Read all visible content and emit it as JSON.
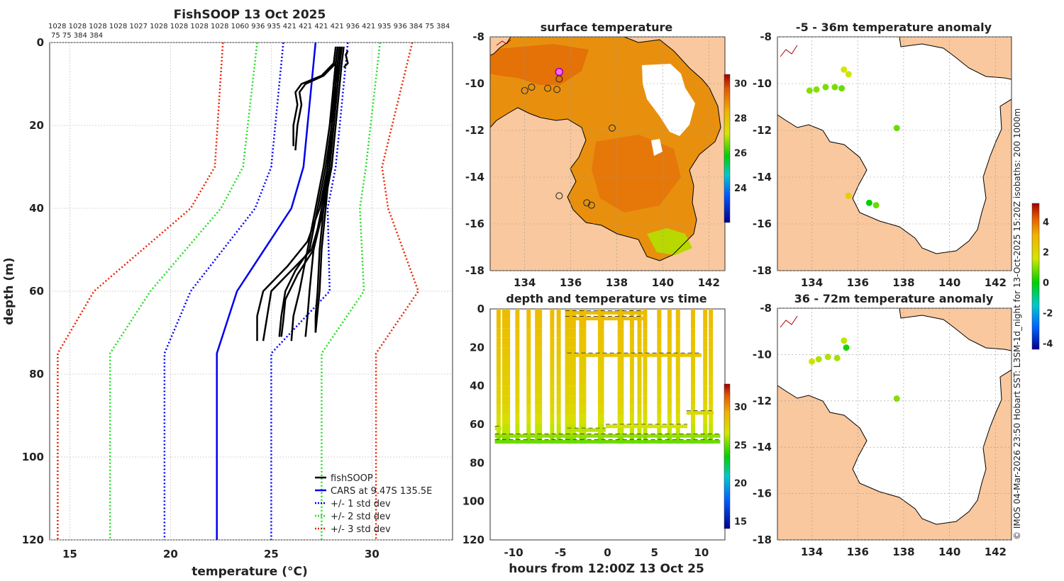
{
  "colors": {
    "fishsoop": "#000000",
    "cars": "#0000ee",
    "std1": "#0000ff",
    "std2": "#22dd22",
    "std3": "#ee2200",
    "land": "#f9c89e",
    "sea_no_data": "#ffffff"
  },
  "chart_data": [
    {
      "id": "profile",
      "type": "line",
      "title": "FishSOOP 13 Oct 2025",
      "subtitle_ids": "1028 1028 1028 1028 1027 1028 1028 1028 1028 1060 936 935 421 421 421 421 936 421 935 936 384 75 384",
      "subtitle_ids_2": "75 75 384 384",
      "xlabel": "temperature (°C)",
      "ylabel": "depth (m)",
      "xlim": [
        14,
        34
      ],
      "ylim": [
        120,
        0
      ],
      "xticks": [
        15,
        20,
        25,
        30
      ],
      "yticks": [
        0,
        20,
        40,
        60,
        80,
        100,
        120
      ],
      "legend": {
        "position": "bottom-right",
        "items": [
          {
            "label": "fishSOOP",
            "color": "#000000",
            "style": "solid"
          },
          {
            "label": "CARS at 9.47S 135.5E",
            "color": "#0000ee",
            "style": "solid"
          },
          {
            "label": "+/- 1 std dev",
            "color": "#0000ff",
            "style": "dotted"
          },
          {
            "label": "+/- 2 std dev",
            "color": "#22dd22",
            "style": "dotted"
          },
          {
            "label": "+/- 3 std dev",
            "color": "#ee2200",
            "style": "dotted"
          }
        ]
      },
      "cars_mean": {
        "depth": [
          0,
          30,
          40,
          60,
          75,
          120
        ],
        "temp": [
          27.2,
          26.6,
          26.0,
          23.3,
          22.3,
          22.3
        ]
      },
      "std_lines": [
        {
          "name": "-1 std",
          "color": "#0000ff",
          "depth": [
            0,
            30,
            40,
            60,
            75,
            120
          ],
          "temp": [
            25.6,
            25.0,
            24.2,
            21.0,
            19.7,
            19.7
          ]
        },
        {
          "name": "+1 std",
          "color": "#0000ff",
          "depth": [
            0,
            30,
            40,
            60,
            75,
            120
          ],
          "temp": [
            28.8,
            28.2,
            27.8,
            27.9,
            25.0,
            25.0
          ]
        },
        {
          "name": "-2 std",
          "color": "#22dd22",
          "depth": [
            0,
            30,
            40,
            60,
            75,
            120
          ],
          "temp": [
            24.3,
            23.6,
            22.5,
            19.0,
            17.0,
            17.0
          ]
        },
        {
          "name": "+2 std",
          "color": "#22dd22",
          "depth": [
            0,
            30,
            40,
            60,
            75,
            120
          ],
          "temp": [
            30.4,
            29.7,
            29.4,
            29.6,
            27.5,
            27.5
          ]
        },
        {
          "name": "-3 std",
          "color": "#ee2200",
          "depth": [
            0,
            30,
            40,
            60,
            75,
            120
          ],
          "temp": [
            22.6,
            22.2,
            21.0,
            16.2,
            14.4,
            14.4
          ]
        },
        {
          "name": "+3 std",
          "color": "#ee2200",
          "depth": [
            0,
            30,
            40,
            60,
            75,
            120
          ],
          "temp": [
            32.0,
            30.5,
            30.8,
            32.3,
            30.2,
            30.2
          ]
        }
      ],
      "fishsoop_profiles": [
        {
          "depth": [
            1,
            5,
            10,
            20,
            30,
            40,
            50,
            60,
            66,
            70
          ],
          "temp": [
            28.4,
            28.3,
            28.1,
            28.0,
            27.8,
            27.6,
            27.4,
            27.3,
            27.2,
            27.2
          ]
        },
        {
          "depth": [
            1,
            5,
            10,
            20,
            30,
            40,
            50,
            60,
            66,
            71
          ],
          "temp": [
            28.5,
            28.4,
            28.3,
            28.1,
            27.8,
            27.5,
            27.1,
            26.9,
            26.8,
            26.7
          ]
        },
        {
          "depth": [
            1,
            5,
            10,
            20,
            30,
            40,
            50,
            60,
            66,
            72
          ],
          "temp": [
            28.3,
            28.2,
            28.1,
            27.9,
            27.6,
            27.2,
            26.8,
            26.4,
            26.1,
            26.0
          ]
        },
        {
          "depth": [
            1,
            5,
            10,
            20,
            30,
            40,
            50,
            55,
            60,
            66,
            71
          ],
          "temp": [
            28.4,
            28.3,
            28.2,
            28.0,
            27.7,
            27.3,
            26.9,
            26.2,
            25.7,
            25.5,
            25.4
          ]
        },
        {
          "depth": [
            1,
            5,
            10,
            20,
            30,
            40,
            50,
            55,
            60,
            66,
            72
          ],
          "temp": [
            28.6,
            28.5,
            28.4,
            28.2,
            28.0,
            27.6,
            27.0,
            26.0,
            25.0,
            24.8,
            24.6
          ]
        },
        {
          "depth": [
            1,
            5,
            10,
            20,
            30,
            40,
            48,
            54,
            60,
            66,
            72
          ],
          "temp": [
            28.3,
            28.2,
            28.1,
            28.0,
            27.8,
            27.4,
            26.8,
            25.8,
            24.6,
            24.3,
            24.3
          ]
        },
        {
          "depth": [
            1,
            5,
            10,
            20,
            30,
            40,
            50,
            56,
            62,
            67,
            71
          ],
          "temp": [
            28.5,
            28.4,
            28.3,
            28.1,
            27.9,
            27.6,
            27.1,
            26.3,
            25.7,
            25.6,
            25.5
          ]
        },
        {
          "depth": [
            1,
            5,
            10,
            20,
            30,
            40,
            50,
            60,
            65,
            70
          ],
          "temp": [
            28.4,
            28.4,
            28.2,
            28.1,
            27.9,
            27.7,
            27.5,
            27.4,
            27.3,
            27.2
          ]
        },
        {
          "depth": [
            1,
            5,
            8,
            10,
            12,
            15,
            20,
            25
          ],
          "temp": [
            28.2,
            28.1,
            27.5,
            26.5,
            26.2,
            26.3,
            26.1,
            26.1
          ]
        },
        {
          "depth": [
            1,
            5,
            8,
            10,
            12,
            15,
            20,
            26
          ],
          "temp": [
            28.3,
            28.2,
            27.6,
            26.7,
            26.4,
            26.5,
            26.3,
            26.2
          ]
        },
        {
          "depth": [
            2,
            3,
            5,
            6
          ],
          "temp": [
            28.8,
            28.7,
            28.8,
            28.6
          ]
        }
      ]
    },
    {
      "id": "sst_map",
      "type": "heatmap",
      "title": "surface temperature",
      "xlim": [
        132.5,
        142.7
      ],
      "ylim": [
        -18,
        -8
      ],
      "xticks": [
        134,
        136,
        138,
        140,
        142
      ],
      "yticks": [
        -8,
        -10,
        -12,
        -14,
        -16,
        -18
      ],
      "colorbar": {
        "min": 22,
        "max": 30.5,
        "ticks": [
          24,
          26,
          28,
          30
        ]
      },
      "markers": [
        {
          "lon": 135.5,
          "lat": -9.5,
          "style": "magenta"
        },
        {
          "lon": 134.0,
          "lat": -10.3,
          "style": "ring"
        },
        {
          "lon": 134.3,
          "lat": -10.15,
          "style": "ring"
        },
        {
          "lon": 135.0,
          "lat": -10.2,
          "style": "ring"
        },
        {
          "lon": 135.4,
          "lat": -10.25,
          "style": "ring"
        },
        {
          "lon": 135.5,
          "lat": -9.8,
          "style": "ring"
        },
        {
          "lon": 137.8,
          "lat": -11.9,
          "style": "ring"
        },
        {
          "lon": 135.5,
          "lat": -14.8,
          "style": "ring"
        },
        {
          "lon": 136.7,
          "lat": -15.1,
          "style": "ring"
        },
        {
          "lon": 136.9,
          "lat": -15.2,
          "style": "ring"
        }
      ]
    },
    {
      "id": "anom_shallow",
      "type": "scatter",
      "title": "-5 - 36m temperature anomaly",
      "xlim": [
        132.5,
        142.7
      ],
      "ylim": [
        -18,
        -8
      ],
      "xticks": [
        134,
        136,
        138,
        140,
        142
      ],
      "yticks": [
        -8,
        -10,
        -12,
        -14,
        -16,
        -18
      ],
      "points": [
        {
          "lon": 135.4,
          "lat": -9.4,
          "value": 1.6
        },
        {
          "lon": 135.6,
          "lat": -9.6,
          "value": 1.5
        },
        {
          "lon": 133.9,
          "lat": -10.3,
          "value": 1.0
        },
        {
          "lon": 134.2,
          "lat": -10.25,
          "value": 1.0
        },
        {
          "lon": 134.6,
          "lat": -10.15,
          "value": 0.9
        },
        {
          "lon": 135.0,
          "lat": -10.15,
          "value": 0.9
        },
        {
          "lon": 135.3,
          "lat": -10.2,
          "value": 0.8
        },
        {
          "lon": 137.7,
          "lat": -11.9,
          "value": 0.8
        },
        {
          "lon": 135.6,
          "lat": -14.8,
          "value": 2.2
        },
        {
          "lon": 136.5,
          "lat": -15.1,
          "value": 0.0
        },
        {
          "lon": 136.8,
          "lat": -15.2,
          "value": 0.8
        }
      ]
    },
    {
      "id": "anom_deep",
      "type": "scatter",
      "title": "36 - 72m temperature anomaly",
      "xlim": [
        132.5,
        142.7
      ],
      "ylim": [
        -18,
        -8
      ],
      "xticks": [
        134,
        136,
        138,
        140,
        142
      ],
      "yticks": [
        -8,
        -10,
        -12,
        -14,
        -16,
        -18
      ],
      "colorbar": {
        "min": -4.4,
        "max": 5.2,
        "ticks": [
          -4,
          -2,
          0,
          2,
          4
        ]
      },
      "points": [
        {
          "lon": 135.4,
          "lat": -9.4,
          "value": 1.4
        },
        {
          "lon": 135.5,
          "lat": -9.7,
          "value": 0.2
        },
        {
          "lon": 134.0,
          "lat": -10.3,
          "value": 1.5
        },
        {
          "lon": 134.3,
          "lat": -10.2,
          "value": 1.3
        },
        {
          "lon": 134.7,
          "lat": -10.1,
          "value": 1.3
        },
        {
          "lon": 135.1,
          "lat": -10.15,
          "value": 1.2
        },
        {
          "lon": 137.7,
          "lat": -11.9,
          "value": 1.0
        }
      ]
    },
    {
      "id": "depth_time",
      "type": "scatter",
      "title": "depth and temperature vs time",
      "xlabel": "hours from 12:00Z 13 Oct 25",
      "xlim": [
        -12.5,
        12.5
      ],
      "ylim": [
        120,
        0
      ],
      "xticks": [
        -10,
        -5,
        0,
        5,
        10
      ],
      "yticks": [
        0,
        20,
        40,
        60,
        80,
        100,
        120
      ],
      "colorbar": {
        "min": 14,
        "max": 33,
        "ticks": [
          15,
          20,
          25,
          30
        ]
      },
      "bottom_depth_m": 70,
      "dives": [
        {
          "t": -11.6
        },
        {
          "t": -11.0
        },
        {
          "t": -10.6
        },
        {
          "t": -9.6
        },
        {
          "t": -8.4
        },
        {
          "t": -7.5
        },
        {
          "t": -7.2
        },
        {
          "t": -5.9
        },
        {
          "t": -5.2
        },
        {
          "t": -4.3
        },
        {
          "t": -4.0
        },
        {
          "t": -3.6
        },
        {
          "t": -2.8
        },
        {
          "t": -2.5
        },
        {
          "t": -0.8
        },
        {
          "t": -0.6
        },
        {
          "t": 1.3
        },
        {
          "t": 1.5
        },
        {
          "t": 2.6
        },
        {
          "t": 3.4
        },
        {
          "t": 4.0
        },
        {
          "t": 5.5
        },
        {
          "t": 6.6
        },
        {
          "t": 7.5
        },
        {
          "t": 9.1
        },
        {
          "t": 10.4
        },
        {
          "t": 11.0
        }
      ],
      "gear_segments": [
        {
          "t0": -4.5,
          "t1": 3.8,
          "depth": 2
        },
        {
          "t0": -4.5,
          "t1": 3.8,
          "depth": 5
        },
        {
          "t0": -4.3,
          "t1": 10.0,
          "depth": 24
        },
        {
          "t0": -12.0,
          "t1": -11.3,
          "depth": 62
        },
        {
          "t0": -4.3,
          "t1": -0.2,
          "depth": 63
        },
        {
          "t0": -0.2,
          "t1": 8.5,
          "depth": 61
        },
        {
          "t0": 8.4,
          "t1": 11.3,
          "depth": 54
        },
        {
          "t0": -12.0,
          "t1": 12.0,
          "depth": 66
        },
        {
          "t0": -12.0,
          "t1": 12.0,
          "depth": 69
        }
      ]
    }
  ],
  "side_note": "© IMOS 04-Mar-2026 23:50 Hobart SST: L3SM-1d_night for 13-Oct-2025 15:20Z isobaths: 200   1000m"
}
